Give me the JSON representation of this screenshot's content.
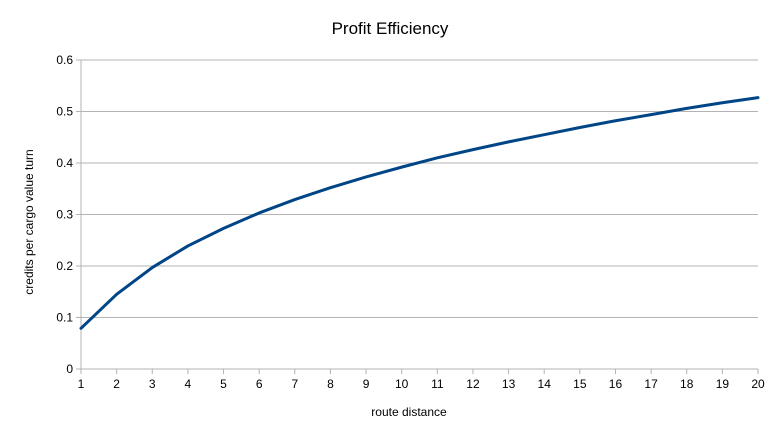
{
  "chart_data": {
    "type": "line",
    "title": "Profit Efficiency",
    "xlabel": "route distance",
    "ylabel": "credits per cargo value turn",
    "xlim": [
      1,
      20
    ],
    "ylim": [
      0,
      0.6
    ],
    "x_ticks": [
      "1",
      "2",
      "3",
      "4",
      "5",
      "6",
      "7",
      "8",
      "9",
      "10",
      "11",
      "12",
      "13",
      "14",
      "15",
      "16",
      "17",
      "18",
      "19",
      "20"
    ],
    "y_ticks": [
      "0",
      "0.1",
      "0.2",
      "0.3",
      "0.4",
      "0.5",
      "0.6"
    ],
    "grid": true,
    "legend": "none",
    "series": [
      {
        "color": "#004586",
        "x": [
          1,
          2,
          3,
          4,
          5,
          6,
          7,
          8,
          9,
          10,
          11,
          12,
          13,
          14,
          15,
          16,
          17,
          18,
          19,
          20
        ],
        "values": [
          0.079,
          0.145,
          0.197,
          0.239,
          0.273,
          0.303,
          0.329,
          0.352,
          0.373,
          0.392,
          0.41,
          0.426,
          0.441,
          0.455,
          0.469,
          0.482,
          0.494,
          0.506,
          0.517,
          0.527
        ]
      }
    ]
  }
}
